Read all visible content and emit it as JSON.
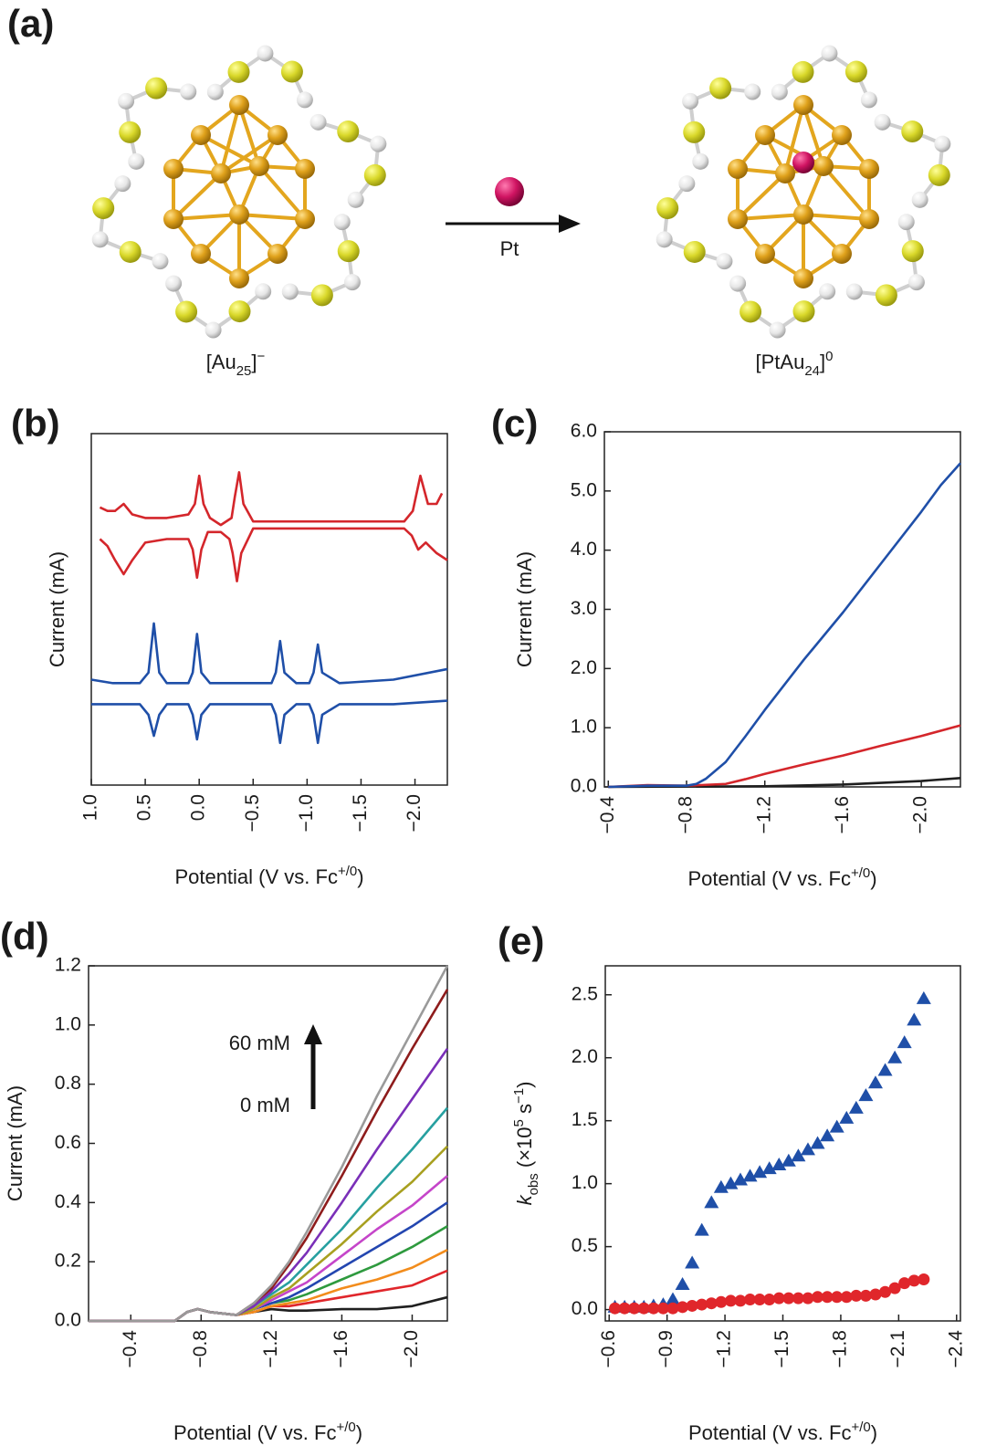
{
  "diagram": {
    "label": "(a)",
    "reagent": "Pt",
    "left": [
      "[Au",
      "25",
      "]",
      "−"
    ],
    "right": [
      "[PtAu",
      "24",
      "]",
      "0"
    ]
  },
  "chart_data": [
    {
      "label": "(b)",
      "type": "line",
      "xlabel": [
        "Potential (V vs. Fc",
        "+/0",
        ")"
      ],
      "ylabel": "Current (mA)",
      "xlim": [
        1.0,
        -2.3
      ],
      "xticks": [
        {
          "value": 1,
          "label": "1.0"
        },
        0.5,
        {
          "value": 0,
          "label": "0.0"
        },
        {
          "value": -0.5,
          "label": "−0.5"
        },
        {
          "value": -1,
          "label": "−1.0"
        },
        {
          "value": -1.5,
          "label": "−1.5"
        },
        {
          "value": -2,
          "label": "−2.0"
        }
      ],
      "ylim": [
        0,
        100
      ],
      "series": [
        {
          "color": "#d4262b",
          "x": [
            0.92,
            0.85,
            0.78,
            0.7,
            0.62,
            0.5,
            0.3,
            0.1,
            0.04,
            0.0,
            -0.04,
            -0.1,
            -0.2,
            -0.3,
            -0.33,
            -0.37,
            -0.41,
            -0.5,
            -0.8,
            -1.2,
            -1.6,
            -1.9,
            -1.98,
            -2.05,
            -2.12,
            -2.2,
            -2.25
          ],
          "values": [
            79,
            78,
            78,
            80,
            77,
            76,
            76,
            77,
            80,
            88,
            80,
            76,
            74,
            76,
            82,
            89,
            80,
            75,
            75,
            75,
            75,
            75,
            78,
            88,
            80,
            80,
            83
          ]
        },
        {
          "color": "#d4262b",
          "x": [
            0.92,
            0.85,
            0.78,
            0.7,
            0.62,
            0.5,
            0.3,
            0.1,
            0.06,
            0.02,
            -0.02,
            -0.08,
            -0.2,
            -0.28,
            -0.31,
            -0.35,
            -0.39,
            -0.5,
            -0.8,
            -1.2,
            -1.6,
            -1.9,
            -1.97,
            -2.03,
            -2.1,
            -2.2,
            -2.3
          ],
          "values": [
            70,
            68,
            64,
            60,
            64,
            69,
            70,
            70,
            67,
            59,
            67,
            72,
            72,
            70,
            66,
            58,
            66,
            73,
            73,
            73,
            73,
            73,
            71,
            67,
            69,
            66,
            64
          ]
        },
        {
          "color": "#1f4fa8",
          "x": [
            1.0,
            0.8,
            0.55,
            0.47,
            0.42,
            0.37,
            0.3,
            0.1,
            0.06,
            0.02,
            -0.02,
            -0.1,
            -0.5,
            -0.67,
            -0.71,
            -0.75,
            -0.79,
            -0.9,
            -1.02,
            -1.06,
            -1.1,
            -1.14,
            -1.3,
            -1.8,
            -2.3
          ],
          "values": [
            30,
            29,
            29,
            32,
            46,
            32,
            29,
            29,
            32,
            43,
            32,
            29,
            29,
            29,
            32,
            41,
            32,
            29,
            29,
            32,
            40,
            32,
            29,
            30,
            33
          ]
        },
        {
          "color": "#1f4fa8",
          "x": [
            1.0,
            0.8,
            0.55,
            0.47,
            0.42,
            0.37,
            0.3,
            0.1,
            0.06,
            0.02,
            -0.02,
            -0.1,
            -0.5,
            -0.67,
            -0.71,
            -0.75,
            -0.79,
            -0.9,
            -1.02,
            -1.06,
            -1.1,
            -1.14,
            -1.3,
            -1.8,
            -2.3
          ],
          "values": [
            23,
            23,
            23,
            20,
            14,
            20,
            23,
            23,
            20,
            13,
            20,
            23,
            23,
            23,
            20,
            12,
            20,
            23,
            23,
            20,
            12,
            20,
            23,
            23,
            24
          ]
        }
      ]
    },
    {
      "label": "(c)",
      "type": "line",
      "xlabel": [
        "Potential (V vs. Fc",
        "+/0",
        ")"
      ],
      "ylabel": "Current (mA)",
      "xlim": [
        -0.38,
        -2.2
      ],
      "xticks": [
        {
          "value": -0.4,
          "label": "−0.4"
        },
        {
          "value": -0.8,
          "label": "−0.8"
        },
        {
          "value": -1.2,
          "label": "−1.2"
        },
        {
          "value": -1.6,
          "label": "−1.6"
        },
        {
          "value": -2,
          "label": "−2.0"
        }
      ],
      "ylim": [
        0,
        6
      ],
      "yticks": [
        {
          "value": 0,
          "label": "0.0"
        },
        {
          "value": 1,
          "label": "1.0"
        },
        {
          "value": 2,
          "label": "2.0"
        },
        {
          "value": 3,
          "label": "3.0"
        },
        {
          "value": 4,
          "label": "4.0"
        },
        {
          "value": 5,
          "label": "5.0"
        },
        {
          "value": 6,
          "label": "6.0"
        }
      ],
      "series": [
        {
          "color": "#1f1f1f",
          "x": [
            -0.4,
            -1.2,
            -1.6,
            -2.0,
            -2.2
          ],
          "values": [
            0,
            0.01,
            0.04,
            0.1,
            0.15
          ]
        },
        {
          "color": "#d4262b",
          "x": [
            -0.4,
            -0.6,
            -0.8,
            -1.0,
            -1.1,
            -1.2,
            -1.4,
            -1.6,
            -1.8,
            -2.0,
            -2.2
          ],
          "values": [
            0,
            0.03,
            0.02,
            0.05,
            0.13,
            0.22,
            0.38,
            0.53,
            0.7,
            0.86,
            1.04
          ]
        },
        {
          "color": "#1f4fa8",
          "x": [
            -0.4,
            -0.6,
            -0.8,
            -0.85,
            -0.9,
            -1.0,
            -1.1,
            -1.2,
            -1.4,
            -1.6,
            -1.8,
            -2.0,
            -2.1,
            -2.2
          ],
          "values": [
            0,
            0.02,
            0.02,
            0.05,
            0.14,
            0.42,
            0.85,
            1.3,
            2.15,
            2.95,
            3.8,
            4.65,
            5.1,
            5.47
          ]
        }
      ]
    },
    {
      "label": "(d)",
      "type": "line",
      "xlabel": [
        "Potential (V vs. Fc",
        "+/0",
        ")"
      ],
      "ylabel": "Current (mA)",
      "annotations": [
        "60 mM",
        "0 mM"
      ],
      "xlim": [
        -0.16,
        -2.2
      ],
      "xticks": [
        {
          "value": -0.4,
          "label": "−0.4"
        },
        {
          "value": -0.8,
          "label": "−0.8"
        },
        {
          "value": -1.2,
          "label": "−1.2"
        },
        {
          "value": -1.6,
          "label": "−1.6"
        },
        {
          "value": -2,
          "label": "−2.0"
        }
      ],
      "ylim": [
        0,
        1.2
      ],
      "yticks": [
        {
          "value": 0,
          "label": "0.0"
        },
        0.2,
        0.4,
        0.6,
        0.8,
        {
          "value": 1,
          "label": "1.0"
        },
        1.2
      ],
      "x": [
        -0.16,
        -0.4,
        -0.65,
        -0.72,
        -0.78,
        -0.85,
        -1.0,
        -1.1,
        -1.2,
        -1.3,
        -1.4,
        -1.6,
        -1.8,
        -2.0,
        -2.2
      ],
      "series": [
        {
          "color": "#1f1f1f",
          "values": [
            0,
            0,
            0,
            0.03,
            0.04,
            0.03,
            0.02,
            0.03,
            0.04,
            0.035,
            0.035,
            0.04,
            0.04,
            0.05,
            0.08
          ]
        },
        {
          "color": "#e0262b",
          "values": [
            0,
            0,
            0,
            0.03,
            0.04,
            0.03,
            0.02,
            0.03,
            0.05,
            0.05,
            0.06,
            0.08,
            0.1,
            0.12,
            0.17
          ]
        },
        {
          "color": "#f28c1c",
          "values": [
            0,
            0,
            0,
            0.03,
            0.04,
            0.03,
            0.02,
            0.03,
            0.05,
            0.06,
            0.07,
            0.11,
            0.14,
            0.18,
            0.24
          ]
        },
        {
          "color": "#2e9a3e",
          "values": [
            0,
            0,
            0,
            0.03,
            0.04,
            0.03,
            0.02,
            0.04,
            0.06,
            0.07,
            0.09,
            0.14,
            0.19,
            0.25,
            0.32
          ]
        },
        {
          "color": "#2346b0",
          "values": [
            0,
            0,
            0,
            0.03,
            0.04,
            0.03,
            0.02,
            0.04,
            0.06,
            0.08,
            0.11,
            0.18,
            0.25,
            0.32,
            0.4
          ]
        },
        {
          "color": "#c545c9",
          "values": [
            0,
            0,
            0,
            0.03,
            0.04,
            0.03,
            0.02,
            0.04,
            0.07,
            0.1,
            0.13,
            0.22,
            0.31,
            0.39,
            0.49
          ]
        },
        {
          "color": "#a8a020",
          "values": [
            0,
            0,
            0,
            0.03,
            0.04,
            0.03,
            0.02,
            0.04,
            0.08,
            0.11,
            0.16,
            0.26,
            0.37,
            0.47,
            0.59
          ]
        },
        {
          "color": "#27a0a0",
          "values": [
            0,
            0,
            0,
            0.03,
            0.04,
            0.03,
            0.02,
            0.05,
            0.09,
            0.13,
            0.19,
            0.31,
            0.45,
            0.58,
            0.72
          ]
        },
        {
          "color": "#7a2fb8",
          "values": [
            0,
            0,
            0,
            0.03,
            0.04,
            0.03,
            0.02,
            0.05,
            0.1,
            0.16,
            0.23,
            0.4,
            0.58,
            0.75,
            0.92
          ]
        },
        {
          "color": "#8e1c1c",
          "values": [
            0,
            0,
            0,
            0.03,
            0.04,
            0.03,
            0.02,
            0.06,
            0.11,
            0.19,
            0.28,
            0.49,
            0.71,
            0.92,
            1.12
          ]
        },
        {
          "color": "#9a9a9a",
          "values": [
            0,
            0,
            0,
            0.03,
            0.04,
            0.03,
            0.02,
            0.06,
            0.12,
            0.2,
            0.3,
            0.52,
            0.76,
            0.98,
            1.2
          ]
        }
      ]
    },
    {
      "label": "(e)",
      "type": "scatter",
      "xlabel": [
        "Potential (V vs. Fc",
        "+/0",
        ")"
      ],
      "ylabel": [
        "k",
        "obs",
        " (×10",
        "5",
        " s",
        "−1",
        ")"
      ],
      "xlim": [
        -0.58,
        -2.42
      ],
      "xticks": [
        {
          "value": -0.6,
          "label": "−0.6"
        },
        {
          "value": -0.9,
          "label": "−0.9"
        },
        {
          "value": -1.2,
          "label": "−1.2"
        },
        {
          "value": -1.5,
          "label": "−1.5"
        },
        {
          "value": -1.8,
          "label": "−1.8"
        },
        {
          "value": -2.1,
          "label": "−2.1"
        },
        {
          "value": -2.4,
          "label": "−2.4"
        }
      ],
      "ylim": [
        -0.09,
        2.73
      ],
      "yticks": [
        {
          "value": 0,
          "label": "0.0"
        },
        0.5,
        {
          "value": 1,
          "label": "1.0"
        },
        1.5,
        {
          "value": 2,
          "label": "2.0"
        },
        2.5
      ],
      "x": [
        -0.63,
        -0.68,
        -0.73,
        -0.78,
        -0.83,
        -0.88,
        -0.93,
        -0.98,
        -1.03,
        -1.08,
        -1.13,
        -1.18,
        -1.23,
        -1.28,
        -1.33,
        -1.38,
        -1.43,
        -1.48,
        -1.53,
        -1.58,
        -1.63,
        -1.68,
        -1.73,
        -1.78,
        -1.83,
        -1.88,
        -1.93,
        -1.98,
        -2.03,
        -2.08,
        -2.13,
        -2.18,
        -2.23
      ],
      "series": [
        {
          "color": "#1f4fa8",
          "marker": "triangle",
          "values": [
            0.02,
            0.02,
            0.02,
            0.02,
            0.03,
            0.04,
            0.08,
            0.2,
            0.37,
            0.63,
            0.85,
            0.97,
            1.0,
            1.03,
            1.06,
            1.09,
            1.12,
            1.15,
            1.18,
            1.22,
            1.27,
            1.32,
            1.38,
            1.45,
            1.52,
            1.6,
            1.7,
            1.8,
            1.9,
            2.0,
            2.12,
            2.3,
            2.47
          ]
        },
        {
          "color": "#e0262b",
          "marker": "circle",
          "values": [
            0.01,
            0.01,
            0.01,
            0.01,
            0.01,
            0.01,
            0.01,
            0.02,
            0.03,
            0.04,
            0.05,
            0.06,
            0.07,
            0.07,
            0.08,
            0.08,
            0.08,
            0.09,
            0.09,
            0.09,
            0.09,
            0.1,
            0.1,
            0.1,
            0.1,
            0.11,
            0.11,
            0.12,
            0.14,
            0.17,
            0.21,
            0.23,
            0.24
          ]
        }
      ]
    }
  ]
}
